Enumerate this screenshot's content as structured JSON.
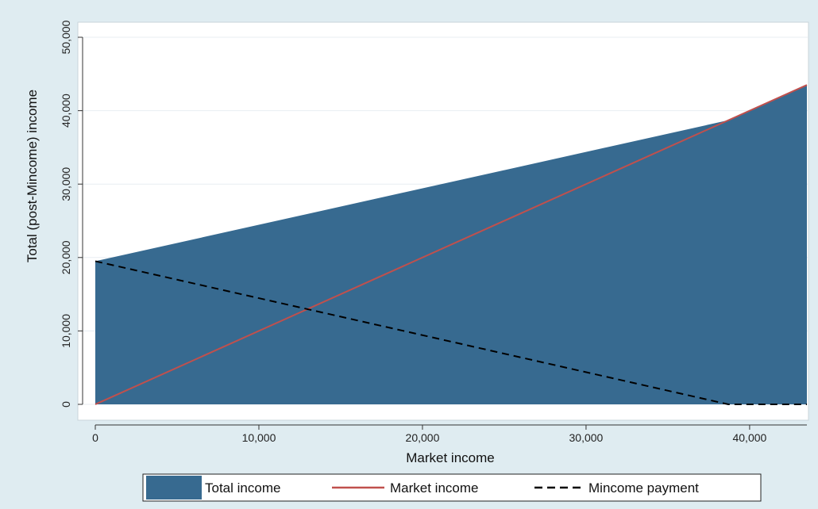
{
  "chart_data": {
    "type": "area",
    "title": "",
    "xlabel": "Market income",
    "ylabel": "Total (post-Mincome) income",
    "xlim": [
      0,
      43500
    ],
    "ylim": [
      0,
      50000
    ],
    "x_ticks": [
      0,
      10000,
      20000,
      30000,
      40000
    ],
    "x_tick_labels": [
      "0",
      "10,000",
      "20,000",
      "30,000",
      "40,000"
    ],
    "y_ticks": [
      0,
      10000,
      20000,
      30000,
      40000,
      50000
    ],
    "y_tick_labels": [
      "0",
      "10,000",
      "20,000",
      "30,000",
      "40,000",
      "50,000"
    ],
    "grid": "horizontal",
    "legend_position": "bottom",
    "series": [
      {
        "name": "Total income",
        "style": "filled-area",
        "color": "#376a90",
        "x": [
          0,
          38700,
          43500
        ],
        "y": [
          19500,
          38700,
          43500
        ]
      },
      {
        "name": "Market income",
        "style": "solid-line",
        "color": "#c0504d",
        "x": [
          0,
          43500
        ],
        "y": [
          0,
          43500
        ]
      },
      {
        "name": "Mincome payment",
        "style": "dashed-line",
        "color": "#000000",
        "x": [
          0,
          38700,
          43500
        ],
        "y": [
          19500,
          0,
          0
        ]
      }
    ]
  },
  "colors": {
    "background": "#dfecf1",
    "plot_area": "#ffffff",
    "grid": "#e8eef2",
    "area_fill": "#376a90",
    "market_line": "#c0504d",
    "mincome_line": "#000000"
  }
}
